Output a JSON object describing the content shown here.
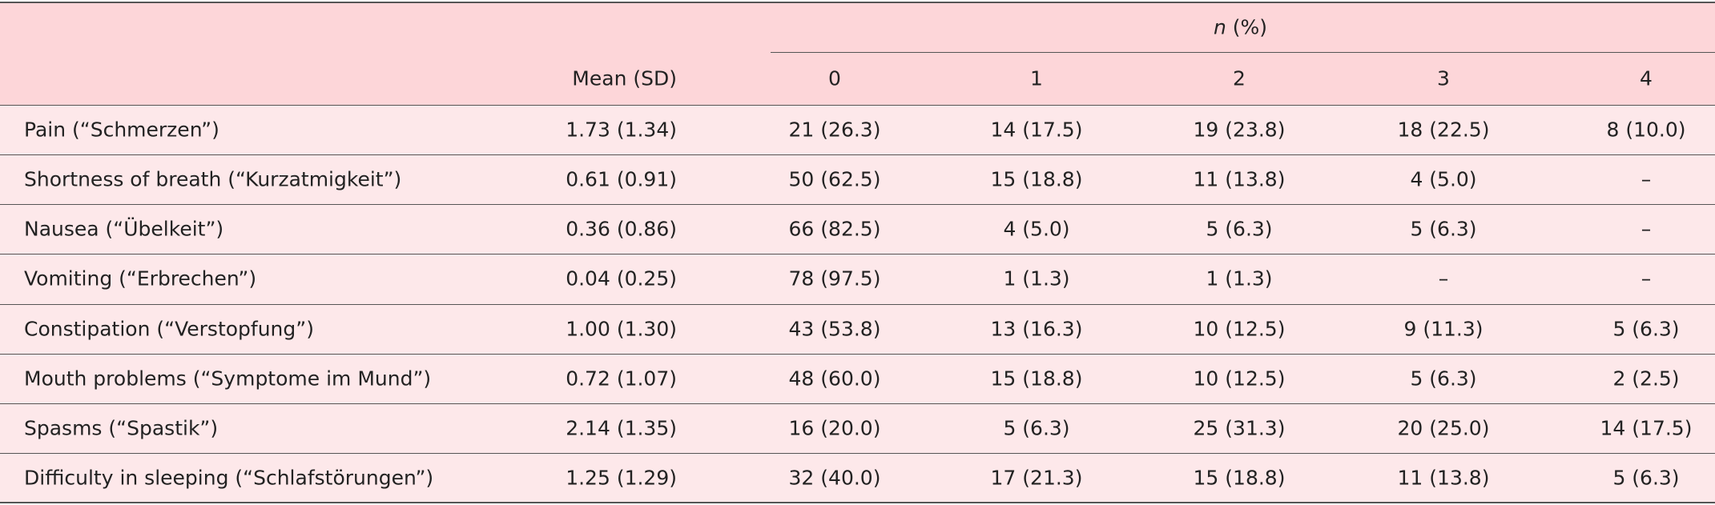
{
  "table": {
    "header": {
      "n_symbol": "n",
      "n_suffix": "(%)",
      "columns": [
        "Mean (SD)",
        "0",
        "1",
        "2",
        "3",
        "4"
      ]
    },
    "rows": [
      [
        "Pain (“Schmerzen”)",
        "1.73 (1.34)",
        "21 (26.3)",
        "14 (17.5)",
        "19 (23.8)",
        "18 (22.5)",
        "8 (10.0)"
      ],
      [
        "Shortness of breath (“Kurzatmigkeit”)",
        "0.61 (0.91)",
        "50 (62.5)",
        "15 (18.8)",
        "11 (13.8)",
        "4 (5.0)",
        "–"
      ],
      [
        "Nausea (“Übelkeit”)",
        "0.36 (0.86)",
        "66 (82.5)",
        "4 (5.0)",
        "5 (6.3)",
        "5 (6.3)",
        "–"
      ],
      [
        "Vomiting (“Erbrechen”)",
        "0.04 (0.25)",
        "78 (97.5)",
        "1 (1.3)",
        "1 (1.3)",
        "–",
        "–"
      ],
      [
        "Constipation (“Verstopfung”)",
        "1.00 (1.30)",
        "43 (53.8)",
        "13 (16.3)",
        "10 (12.5)",
        "9 (11.3)",
        "5 (6.3)"
      ],
      [
        "Mouth problems (“Symptome im Mund”)",
        "0.72 (1.07)",
        "48 (60.0)",
        "15 (18.8)",
        "10 (12.5)",
        "5 (6.3)",
        "2 (2.5)"
      ],
      [
        "Spasms (“Spastik”)",
        "2.14 (1.35)",
        "16 (20.0)",
        "5 (6.3)",
        "25 (31.3)",
        "20 (25.0)",
        "14 (17.5)"
      ],
      [
        "Difficulty in sleeping (“Schlafstörungen”)",
        "1.25 (1.29)",
        "32 (40.0)",
        "17 (21.3)",
        "15 (18.8)",
        "11 (13.8)",
        "5 (6.3)"
      ]
    ]
  }
}
